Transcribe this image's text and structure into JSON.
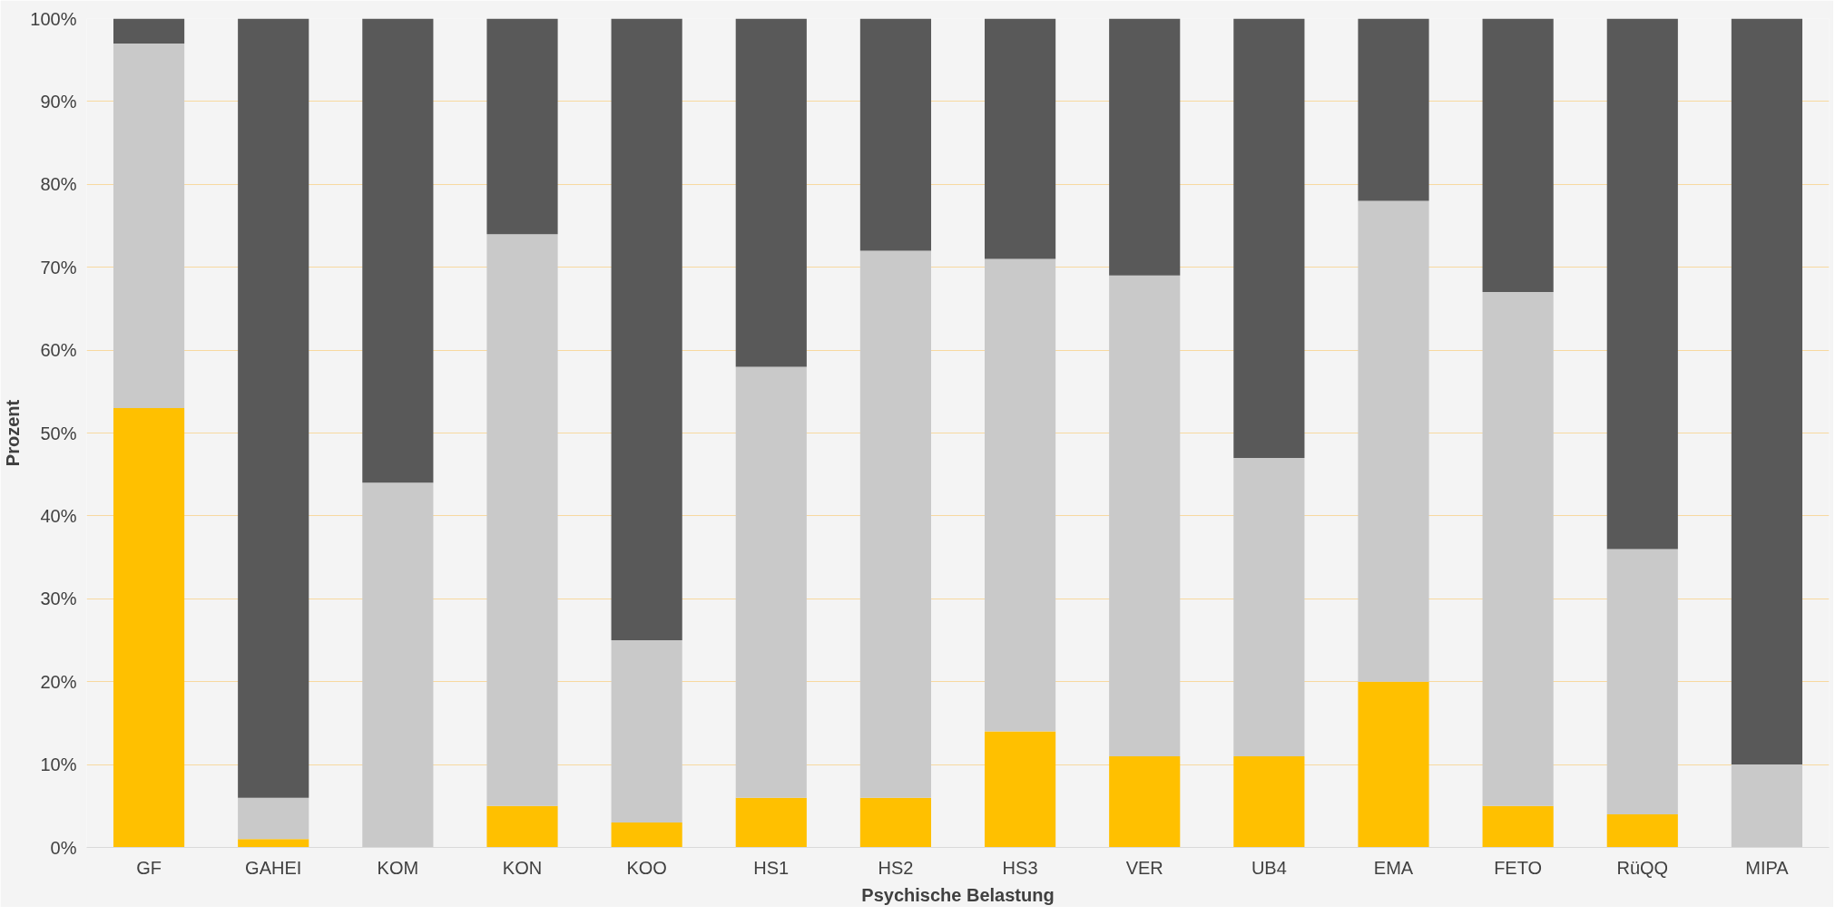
{
  "chart_data": {
    "type": "bar",
    "stacked": true,
    "xlabel": "Psychische Belastung",
    "ylabel": "Prozent",
    "categories": [
      "GF",
      "GAHEI",
      "KOM",
      "KON",
      "KOO",
      "HS1",
      "HS2",
      "HS3",
      "VER",
      "UB4",
      "EMA",
      "FETO",
      "RüQQ",
      "MIPA"
    ],
    "series": [
      {
        "color": "#ffc000",
        "values": [
          53,
          1,
          0,
          5,
          3,
          6,
          6,
          14,
          11,
          11,
          20,
          5,
          4,
          0
        ]
      },
      {
        "color": "#c9c9c9",
        "values": [
          44,
          5,
          44,
          69,
          22,
          52,
          66,
          57,
          58,
          36,
          58,
          62,
          32,
          10
        ]
      },
      {
        "color": "#595959",
        "values": [
          3,
          94,
          56,
          26,
          75,
          42,
          28,
          29,
          31,
          53,
          22,
          33,
          64,
          90
        ]
      }
    ],
    "ylim": [
      0,
      100
    ],
    "yticks": [
      {
        "value": 0,
        "label": "0%"
      },
      {
        "value": 10,
        "label": "10%"
      },
      {
        "value": 20,
        "label": "20%"
      },
      {
        "value": 30,
        "label": "30%"
      },
      {
        "value": 40,
        "label": "40%"
      },
      {
        "value": 50,
        "label": "50%"
      },
      {
        "value": 60,
        "label": "60%"
      },
      {
        "value": 70,
        "label": "70%"
      },
      {
        "value": 80,
        "label": "80%"
      },
      {
        "value": 90,
        "label": "90%"
      },
      {
        "value": 100,
        "label": "100%"
      }
    ],
    "grid": "y"
  }
}
